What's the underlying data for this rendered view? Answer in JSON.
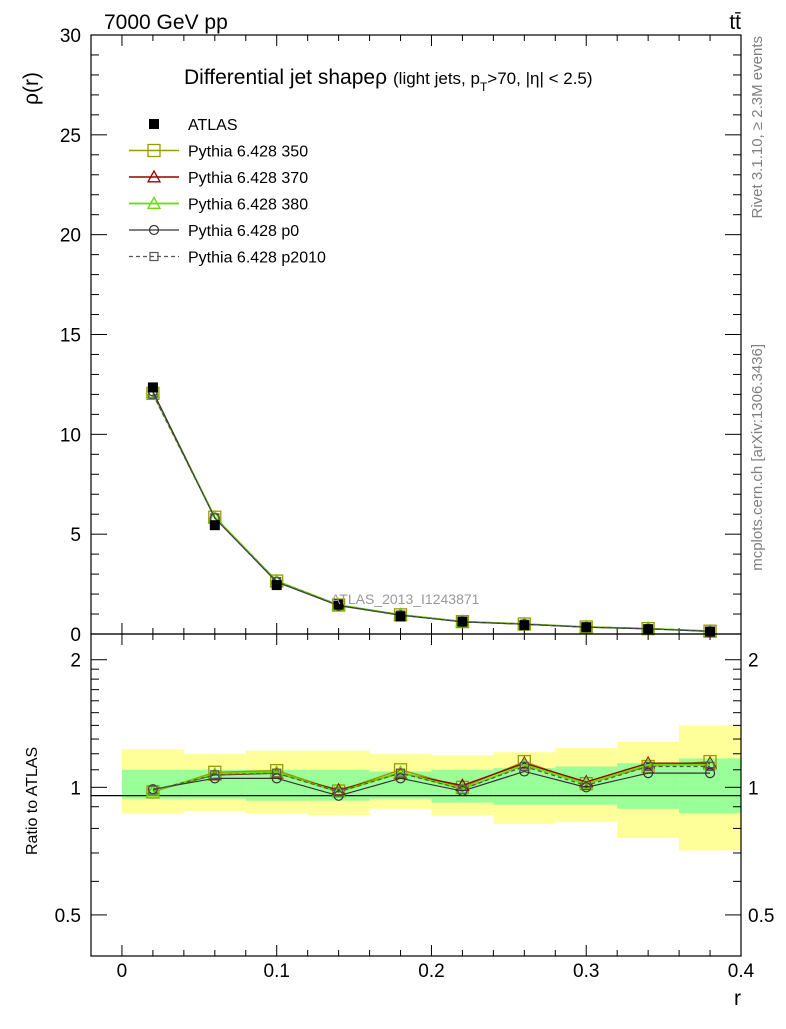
{
  "header": {
    "left": "7000 GeV pp",
    "right": "tt̄"
  },
  "title": {
    "main": "Differential jet shape",
    "rho": "ρ",
    "sub_a": "(light jets, p",
    "sub_T": "T",
    "sub_b": ">70, |η| < 2.5)"
  },
  "side_text": {
    "rivet": "Rivet 3.1.10, ≥ 2.3M events",
    "mcplots": "mcplots.cern.ch [arXiv:1306.3436]"
  },
  "watermark": "ATLAS_2013_I1243871",
  "ylabel_top": "ρ(r)",
  "ylabel_bottom": "Ratio to ATLAS",
  "xlabel": "r",
  "colors": {
    "data": "#000000",
    "p350": "#999900",
    "p370": "#990000",
    "p380": "#66dd00",
    "p0": "#333333",
    "p2010": "#555555",
    "band_inner": "#99ff99",
    "band_outer": "#ffff99"
  },
  "chart_data": [
    {
      "type": "line",
      "xlim": [
        -0.02,
        0.4
      ],
      "ylim": [
        0,
        30
      ],
      "x_ticks": [
        "0",
        "0.1",
        "0.2",
        "0.3",
        "0.4"
      ],
      "y_ticks": [
        "0",
        "5",
        "10",
        "15",
        "20",
        "25",
        "30"
      ],
      "legend_position": "top-left",
      "x": [
        0.02,
        0.06,
        0.1,
        0.14,
        0.18,
        0.22,
        0.26,
        0.3,
        0.34,
        0.38
      ],
      "series": [
        {
          "name": "ATLAS",
          "key": "data",
          "values": [
            12.35,
            5.45,
            2.45,
            1.48,
            0.88,
            0.62,
            0.44,
            0.34,
            0.24,
            0.12
          ]
        },
        {
          "name": "Pythia 6.428 350",
          "key": "p350",
          "values": [
            12.05,
            5.85,
            2.65,
            1.45,
            0.96,
            0.62,
            0.5,
            0.35,
            0.27,
            0.14
          ]
        },
        {
          "name": "Pythia 6.428 370",
          "key": "p370",
          "values": [
            12.1,
            5.85,
            2.65,
            1.45,
            0.96,
            0.62,
            0.5,
            0.35,
            0.27,
            0.14
          ]
        },
        {
          "name": "Pythia 6.428 380",
          "key": "p380",
          "values": [
            12.1,
            5.85,
            2.65,
            1.45,
            0.96,
            0.62,
            0.5,
            0.35,
            0.27,
            0.14
          ]
        },
        {
          "name": "Pythia 6.428 p0",
          "key": "p0",
          "values": [
            12.15,
            5.8,
            2.6,
            1.42,
            0.94,
            0.61,
            0.49,
            0.34,
            0.26,
            0.13
          ]
        },
        {
          "name": "Pythia 6.428 p2010",
          "key": "p2010",
          "values": [
            12.0,
            5.82,
            2.63,
            1.44,
            0.95,
            0.61,
            0.49,
            0.35,
            0.26,
            0.14
          ]
        }
      ]
    },
    {
      "type": "line",
      "ylabel": "Ratio to ATLAS",
      "xlabel": "r",
      "xlim": [
        -0.02,
        0.4
      ],
      "ylim": [
        0.4,
        2.3
      ],
      "log_y": true,
      "x_ticks": [
        "0",
        "0.1",
        "0.2",
        "0.3",
        "0.4"
      ],
      "y_ticks": [
        "0.5",
        "1",
        "2"
      ],
      "x": [
        0.02,
        0.06,
        0.1,
        0.14,
        0.18,
        0.22,
        0.26,
        0.3,
        0.34,
        0.38
      ],
      "bins": [
        [
          0.0,
          0.04
        ],
        [
          0.04,
          0.08
        ],
        [
          0.08,
          0.12
        ],
        [
          0.12,
          0.16
        ],
        [
          0.16,
          0.2
        ],
        [
          0.2,
          0.24
        ],
        [
          0.24,
          0.28
        ],
        [
          0.28,
          0.32
        ],
        [
          0.32,
          0.36
        ],
        [
          0.36,
          0.4
        ]
      ],
      "band_inner": [
        [
          0.94,
          1.1
        ],
        [
          0.94,
          1.1
        ],
        [
          0.93,
          1.1
        ],
        [
          0.93,
          1.1
        ],
        [
          0.94,
          1.09
        ],
        [
          0.92,
          1.1
        ],
        [
          0.91,
          1.11
        ],
        [
          0.91,
          1.12
        ],
        [
          0.89,
          1.14
        ],
        [
          0.87,
          1.17
        ]
      ],
      "band_outer": [
        [
          0.87,
          1.23
        ],
        [
          0.88,
          1.2
        ],
        [
          0.87,
          1.22
        ],
        [
          0.86,
          1.22
        ],
        [
          0.89,
          1.2
        ],
        [
          0.86,
          1.19
        ],
        [
          0.82,
          1.21
        ],
        [
          0.83,
          1.24
        ],
        [
          0.76,
          1.28
        ],
        [
          0.71,
          1.4
        ]
      ],
      "series": [
        {
          "name": "Pythia 6.428 350",
          "key": "p350",
          "values": [
            0.975,
            1.085,
            1.095,
            0.98,
            1.1,
            1.0,
            1.15,
            1.02,
            1.12,
            1.15
          ]
        },
        {
          "name": "Pythia 6.428 370",
          "key": "p370",
          "values": [
            0.98,
            1.07,
            1.08,
            0.985,
            1.08,
            1.01,
            1.14,
            1.03,
            1.14,
            1.14
          ]
        },
        {
          "name": "Pythia 6.428 380",
          "key": "p380",
          "values": [
            0.98,
            1.075,
            1.085,
            0.975,
            1.085,
            0.99,
            1.13,
            1.02,
            1.13,
            1.13
          ]
        },
        {
          "name": "Pythia 6.428 p0",
          "key": "p0",
          "values": [
            0.99,
            1.05,
            1.05,
            0.955,
            1.05,
            0.98,
            1.09,
            1.0,
            1.08,
            1.08
          ]
        },
        {
          "name": "Pythia 6.428 p2010",
          "key": "p2010",
          "values": [
            0.985,
            1.07,
            1.08,
            0.975,
            1.08,
            0.99,
            1.12,
            1.01,
            1.12,
            1.12
          ]
        }
      ]
    }
  ]
}
